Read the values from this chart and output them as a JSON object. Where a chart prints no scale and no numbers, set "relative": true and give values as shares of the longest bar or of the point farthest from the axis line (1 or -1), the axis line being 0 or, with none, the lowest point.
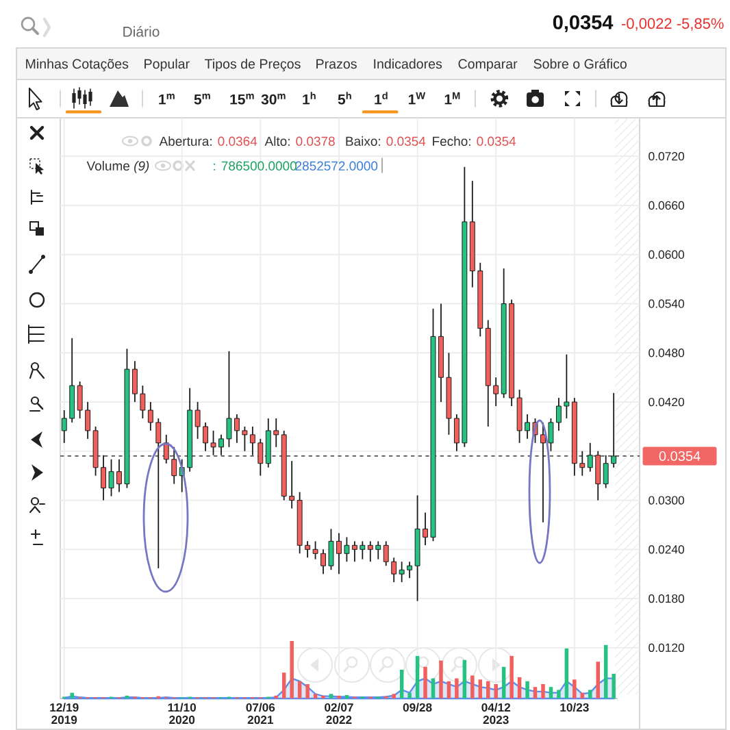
{
  "chart_data": [
    {
      "type": "other",
      "annotations": [
        "Diário",
        "0,0354",
        "-0,0022 -5,85%",
        "Minhas Cotações",
        "Popular",
        "Tipos de Preços",
        "Prazos",
        "Indicadores",
        "Comparar",
        "Sobre o Gráfico",
        "1$^{m}$",
        "5$^{m}$",
        "15$^{m}$",
        "30$^{m}$",
        "1$^{h}$",
        "5$^{h}$",
        "1$^{d}$",
        "1$^{W}$",
        "1$^{M}$"
      ]
    },
    {
      "type": "candlestick",
      "categories": [
        "12/19 2019",
        null,
        null,
        null,
        null,
        null,
        null,
        null,
        null,
        null,
        null,
        null,
        null,
        null,
        null,
        "11/10 2020",
        null,
        null,
        null,
        null,
        null,
        null,
        null,
        null,
        null,
        "07/06 2021",
        null,
        null,
        null,
        null,
        null,
        null,
        null,
        null,
        null,
        "02/07 2022",
        null,
        null,
        null,
        null,
        null,
        null,
        null,
        null,
        null,
        "09/28",
        null,
        null,
        null,
        null,
        null,
        null,
        null,
        null,
        null,
        "04/12 2023",
        null,
        null,
        null,
        null,
        null,
        null,
        null,
        null,
        null,
        "10/23",
        null,
        null,
        null,
        null,
        null
      ],
      "ohlc": [
        [
          0.0385,
          0.041,
          0.037,
          0.04
        ],
        [
          0.04,
          0.0498,
          0.0395,
          0.044
        ],
        [
          0.044,
          0.0445,
          0.04,
          0.041
        ],
        [
          0.041,
          0.042,
          0.0375,
          0.0385
        ],
        [
          0.0385,
          0.039,
          0.033,
          0.034
        ],
        [
          0.034,
          0.0355,
          0.03,
          0.0315
        ],
        [
          0.0315,
          0.035,
          0.0305,
          0.0335
        ],
        [
          0.0335,
          0.035,
          0.031,
          0.032
        ],
        [
          0.032,
          0.0485,
          0.0315,
          0.046
        ],
        [
          0.046,
          0.047,
          0.042,
          0.043
        ],
        [
          0.043,
          0.044,
          0.04,
          0.041
        ],
        [
          0.041,
          0.042,
          0.0385,
          0.0395
        ],
        [
          0.0395,
          0.04,
          0.0217,
          0.037
        ],
        [
          0.037,
          0.038,
          0.0345,
          0.035
        ],
        [
          0.035,
          0.0365,
          0.032,
          0.033
        ],
        [
          0.033,
          0.035,
          0.031,
          0.034
        ],
        [
          0.034,
          0.0437,
          0.0335,
          0.041
        ],
        [
          0.041,
          0.042,
          0.0375,
          0.039
        ],
        [
          0.039,
          0.0395,
          0.036,
          0.037
        ],
        [
          0.037,
          0.0385,
          0.0355,
          0.0365
        ],
        [
          0.0365,
          0.038,
          0.0355,
          0.0375
        ],
        [
          0.0375,
          0.0482,
          0.0365,
          0.04
        ],
        [
          0.04,
          0.0405,
          0.037,
          0.0385
        ],
        [
          0.0385,
          0.039,
          0.036,
          0.038
        ],
        [
          0.038,
          0.039,
          0.0355,
          0.037
        ],
        [
          0.037,
          0.0375,
          0.033,
          0.0345
        ],
        [
          0.0345,
          0.04,
          0.034,
          0.0385
        ],
        [
          0.0385,
          0.04,
          0.0365,
          0.038
        ],
        [
          0.038,
          0.0385,
          0.03,
          0.0305
        ],
        [
          0.0305,
          0.0348,
          0.029,
          0.03
        ],
        [
          0.03,
          0.031,
          0.0235,
          0.0245
        ],
        [
          0.0245,
          0.025,
          0.023,
          0.024
        ],
        [
          0.024,
          0.025,
          0.0228,
          0.0235
        ],
        [
          0.0235,
          0.024,
          0.021,
          0.022
        ],
        [
          0.022,
          0.0265,
          0.0215,
          0.025
        ],
        [
          0.025,
          0.026,
          0.021,
          0.0235
        ],
        [
          0.0235,
          0.0255,
          0.0225,
          0.0245
        ],
        [
          0.0245,
          0.025,
          0.0225,
          0.024
        ],
        [
          0.024,
          0.025,
          0.0228,
          0.0245
        ],
        [
          0.0245,
          0.025,
          0.0225,
          0.024
        ],
        [
          0.024,
          0.025,
          0.0228,
          0.0245
        ],
        [
          0.0245,
          0.025,
          0.022,
          0.0225
        ],
        [
          0.0225,
          0.023,
          0.02,
          0.021
        ],
        [
          0.021,
          0.0225,
          0.02,
          0.0215
        ],
        [
          0.0215,
          0.0225,
          0.0205,
          0.022
        ],
        [
          0.022,
          0.0306,
          0.0177,
          0.0265
        ],
        [
          0.0265,
          0.0285,
          0.0245,
          0.0255
        ],
        [
          0.0255,
          0.0534,
          0.025,
          0.05
        ],
        [
          0.05,
          0.054,
          0.042,
          0.045
        ],
        [
          0.045,
          0.048,
          0.038,
          0.04
        ],
        [
          0.04,
          0.0405,
          0.036,
          0.037
        ],
        [
          0.037,
          0.0707,
          0.0365,
          0.064
        ],
        [
          0.064,
          0.069,
          0.056,
          0.058
        ],
        [
          0.058,
          0.059,
          0.05,
          0.051
        ],
        [
          0.051,
          0.052,
          0.039,
          0.044
        ],
        [
          0.044,
          0.045,
          0.0415,
          0.043
        ],
        [
          0.043,
          0.0583,
          0.0425,
          0.054
        ],
        [
          0.054,
          0.0545,
          0.0415,
          0.0425
        ],
        [
          0.0425,
          0.0435,
          0.037,
          0.0385
        ],
        [
          0.0385,
          0.0405,
          0.0375,
          0.0395
        ],
        [
          0.0395,
          0.04,
          0.037,
          0.038
        ],
        [
          0.038,
          0.0395,
          0.0273,
          0.037
        ],
        [
          0.037,
          0.04,
          0.036,
          0.0395
        ],
        [
          0.0395,
          0.0425,
          0.0385,
          0.0415
        ],
        [
          0.0415,
          0.0478,
          0.04,
          0.042
        ],
        [
          0.042,
          0.0425,
          0.033,
          0.0345
        ],
        [
          0.0345,
          0.036,
          0.033,
          0.034
        ],
        [
          0.034,
          0.037,
          0.0335,
          0.0355
        ],
        [
          0.0355,
          0.036,
          0.03,
          0.032
        ],
        [
          0.032,
          0.0355,
          0.0315,
          0.0345
        ],
        [
          0.0345,
          0.0431,
          0.034,
          0.0354
        ]
      ],
      "colors": [
        "#26c281",
        "#26c281",
        "#f0605d",
        "#f0605d",
        "#f0605d",
        "#f0605d",
        "#26c281",
        "#f0605d",
        "#26c281",
        "#f0605d",
        "#f0605d",
        "#f0605d",
        "#f0605d",
        "#f0605d",
        "#f0605d",
        "#26c281",
        "#26c281",
        "#f0605d",
        "#f0605d",
        "#f0605d",
        "#26c281",
        "#26c281",
        "#f0605d",
        "#f0605d",
        "#f0605d",
        "#f0605d",
        "#26c281",
        "#f0605d",
        "#f0605d",
        "#f0605d",
        "#f0605d",
        "#f0605d",
        "#f0605d",
        "#f0605d",
        "#26c281",
        "#f0605d",
        "#26c281",
        "#f0605d",
        "#26c281",
        "#f0605d",
        "#26c281",
        "#f0605d",
        "#f0605d",
        "#26c281",
        "#26c281",
        "#26c281",
        "#f0605d",
        "#26c281",
        "#f0605d",
        "#f0605d",
        "#f0605d",
        "#26c281",
        "#f0605d",
        "#f0605d",
        "#f0605d",
        "#f0605d",
        "#26c281",
        "#f0605d",
        "#f0605d",
        "#26c281",
        "#f0605d",
        "#f0605d",
        "#26c281",
        "#26c281",
        "#26c281",
        "#f0605d",
        "#f0605d",
        "#26c281",
        "#f0605d",
        "#26c281",
        "#26c281"
      ],
      "ylim": [
        0.0058,
        0.0767
      ],
      "yticks": [
        {
          "value": 0.012,
          "label": "0.0120"
        },
        {
          "value": 0.018,
          "label": "0.0180"
        },
        {
          "value": 0.024,
          "label": "0.0240"
        },
        {
          "value": 0.03,
          "label": "0.0300"
        },
        {
          "value": 0.036,
          "label": null
        },
        {
          "value": 0.042,
          "label": "0.0420"
        },
        {
          "value": 0.048,
          "label": "0.0480"
        },
        {
          "value": 0.054,
          "label": "0.0540"
        },
        {
          "value": 0.06,
          "label": "0.0600"
        },
        {
          "value": 0.066,
          "label": "0.0660"
        },
        {
          "value": 0.072,
          "label": "0.0720"
        }
      ],
      "grid": true,
      "ref_lines": [
        {
          "axis": "y",
          "value": 0.0354,
          "label": "0.0354",
          "color": "#555555",
          "line_style": "dashed"
        }
      ],
      "annotations": [
        "Abertura:",
        "0.0364",
        "Alto:",
        "0.0378",
        "Baixo:",
        "0.0354",
        "Fecho:",
        "0.0354"
      ]
    },
    {
      "type": "bar",
      "relative": true,
      "categories": [
        null,
        null,
        null,
        null,
        null,
        null,
        null,
        null,
        null,
        null,
        null,
        null,
        null,
        null,
        null,
        null,
        null,
        null,
        null,
        null,
        null,
        null,
        null,
        null,
        null,
        null,
        null,
        null,
        null,
        null,
        null,
        null,
        null,
        null,
        null,
        null,
        null,
        null,
        null,
        null,
        null,
        null,
        null,
        null,
        null,
        null,
        null,
        null,
        null,
        null,
        null,
        null,
        null,
        null,
        null,
        null,
        null,
        null,
        null,
        null,
        null,
        null,
        null,
        null,
        null,
        null,
        null,
        null,
        null,
        null,
        null
      ],
      "series": [
        {
          "type": "area",
          "color": "#5b8def",
          "values": [
            0.01,
            0.04,
            0.02,
            0.01,
            0.01,
            0.01,
            0.01,
            0.01,
            0.02,
            0.02,
            0.01,
            0.01,
            0.01,
            0.02,
            0.01,
            0.01,
            0.01,
            0.01,
            0.01,
            0.01,
            0.01,
            0.01,
            0.01,
            0.01,
            0.01,
            0.01,
            0.01,
            0.02,
            0.15,
            0.35,
            0.3,
            0.2,
            0.08,
            0.04,
            0.04,
            0.03,
            0.03,
            0.02,
            0.02,
            0.02,
            0.02,
            0.03,
            0.05,
            0.15,
            0.1,
            0.3,
            0.35,
            0.25,
            0.3,
            0.25,
            0.2,
            0.3,
            0.25,
            0.2,
            0.18,
            0.15,
            0.2,
            0.3,
            0.2,
            0.15,
            0.12,
            0.12,
            0.1,
            0.1,
            0.3,
            0.2,
            0.08,
            0.1,
            0.25,
            0.35,
            0.35
          ]
        },
        {
          "colors": [
            "#26c281",
            "#26c281",
            "#f0605d",
            "#f0605d",
            "#f0605d",
            "#f0605d",
            "#26c281",
            "#f0605d",
            "#26c281",
            "#f0605d",
            "#f0605d",
            "#f0605d",
            "#f0605d",
            "#f0605d",
            "#f0605d",
            "#26c281",
            "#26c281",
            "#f0605d",
            "#f0605d",
            "#f0605d",
            "#26c281",
            "#26c281",
            "#f0605d",
            "#f0605d",
            "#f0605d",
            "#f0605d",
            "#26c281",
            "#f0605d",
            "#f0605d",
            "#f0605d",
            "#f0605d",
            "#f0605d",
            "#f0605d",
            "#f0605d",
            "#26c281",
            "#f0605d",
            "#26c281",
            "#f0605d",
            "#26c281",
            "#f0605d",
            "#26c281",
            "#f0605d",
            "#f0605d",
            "#26c281",
            "#26c281",
            "#26c281",
            "#f0605d",
            "#26c281",
            "#f0605d",
            "#f0605d",
            "#f0605d",
            "#26c281",
            "#f0605d",
            "#f0605d",
            "#f0605d",
            "#f0605d",
            "#26c281",
            "#f0605d",
            "#f0605d",
            "#26c281",
            "#f0605d",
            "#f0605d",
            "#26c281",
            "#26c281",
            "#26c281",
            "#f0605d",
            "#f0605d",
            "#26c281",
            "#f0605d",
            "#26c281",
            "#26c281"
          ],
          "values": [
            0.03,
            0.1,
            0.02,
            0.02,
            0.02,
            0.02,
            0.03,
            0.02,
            0.05,
            0.03,
            0.02,
            0.02,
            0.04,
            0.02,
            0.02,
            0.02,
            0.03,
            0.02,
            0.02,
            0.02,
            0.02,
            0.03,
            0.02,
            0.02,
            0.02,
            0.02,
            0.03,
            0.05,
            0.45,
            1,
            0.3,
            0.25,
            0.08,
            0.05,
            0.08,
            0.05,
            0.06,
            0.03,
            0.03,
            0.03,
            0.03,
            0.04,
            0.08,
            0.5,
            0.1,
            0.74,
            0.55,
            0.35,
            0.66,
            0.3,
            0.35,
            0.67,
            0.4,
            0.33,
            0.3,
            0.25,
            0.55,
            0.74,
            0.37,
            0.3,
            0.2,
            0.25,
            0.2,
            0.15,
            0.87,
            0.33,
            0.1,
            0.15,
            0.64,
            0.93,
            0.43
          ]
        }
      ],
      "annotations": [
        "Volume *(9)*",
        ": 786500.0000",
        "2852572.0000"
      ]
    }
  ]
}
